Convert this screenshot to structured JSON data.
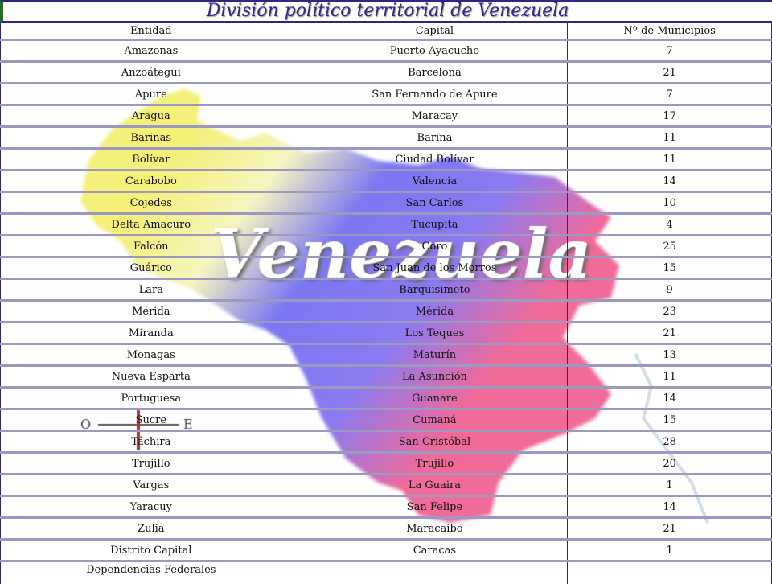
{
  "title": "División político territorial de Venezuela",
  "watermark": "Venezuela",
  "compass": {
    "west": "O",
    "east": "E"
  },
  "table": {
    "headers": [
      "Entidad",
      "Capital",
      "Nº de Municipios"
    ],
    "rows": [
      [
        "Amazonas",
        "Puerto Ayacucho",
        "7"
      ],
      [
        "Anzoátegui",
        "Barcelona",
        "21"
      ],
      [
        "Apure",
        "San Fernando de Apure",
        "7"
      ],
      [
        "Aragua",
        "Maracay",
        "17"
      ],
      [
        "Barinas",
        "Barina",
        "11"
      ],
      [
        "Bolívar",
        "Ciudad Bolívar",
        "11"
      ],
      [
        "Carabobo",
        "Valencia",
        "14"
      ],
      [
        "Cojedes",
        "San Carlos",
        "10"
      ],
      [
        "Delta Amacuro",
        "Tucupita",
        "4"
      ],
      [
        "Falcón",
        "Coro",
        "25"
      ],
      [
        "Guárico",
        "San Juan de los Morros",
        "15"
      ],
      [
        "Lara",
        "Barquisimeto",
        "9"
      ],
      [
        "Mérida",
        "Mérida",
        "23"
      ],
      [
        "Miranda",
        "Los Teques",
        "21"
      ],
      [
        "Monagas",
        "Maturín",
        "13"
      ],
      [
        "Nueva Esparta",
        "La Asunción",
        "11"
      ],
      [
        "Portuguesa",
        "Guanare",
        "14"
      ],
      [
        "Sucre",
        "Cumaná",
        "15"
      ],
      [
        "Táchira",
        "San Cristóbal",
        "28"
      ],
      [
        "Trujillo",
        "Trujillo",
        "20"
      ],
      [
        "Vargas",
        "La Guaira",
        "1"
      ],
      [
        "Yaracuy",
        "San Felipe",
        "14"
      ],
      [
        "Zulia",
        "Maracaibo",
        "21"
      ],
      [
        "Distrito Capital",
        "Caracas",
        "1"
      ],
      [
        "Dependencias Federales",
        "-----------",
        "-----------"
      ]
    ]
  },
  "colors": {
    "yellow": "#f4f07a",
    "blue": "#7070f0",
    "pink": "#f06a9a",
    "grid": "#9a9ac0",
    "border": "#2a2a7a"
  }
}
